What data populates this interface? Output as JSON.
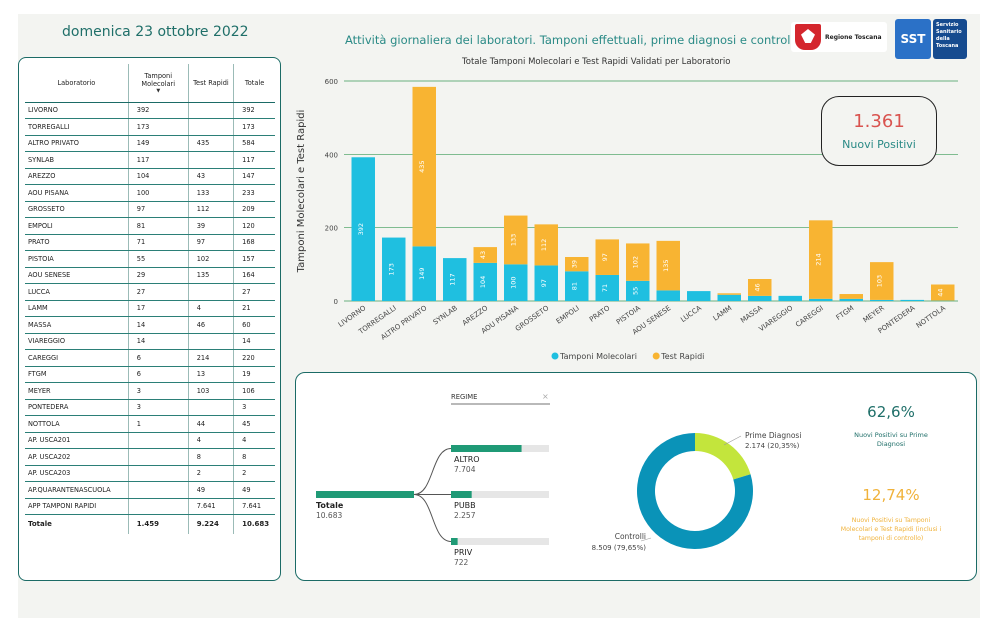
{
  "header": {
    "date": "domenica 23 ottobre 2022",
    "title": "Attività giornaliera dei laboratori. Tamponi effettuali, prime diagnosi e controlli",
    "logo_regione": "Regione Toscana",
    "logo_sst_short": "SST",
    "logo_sst_text": "Servizio Sanitario della Toscana"
  },
  "table": {
    "columns": [
      "Laboratorio",
      "Tamponi Molecolari",
      "Test Rapidi",
      "Totale"
    ],
    "rows": [
      [
        "LIVORNO",
        "392",
        "",
        "392"
      ],
      [
        "TORREGALLI",
        "173",
        "",
        "173"
      ],
      [
        "ALTRO PRIVATO",
        "149",
        "435",
        "584"
      ],
      [
        "SYNLAB",
        "117",
        "",
        "117"
      ],
      [
        "AREZZO",
        "104",
        "43",
        "147"
      ],
      [
        "AOU PISANA",
        "100",
        "133",
        "233"
      ],
      [
        "GROSSETO",
        "97",
        "112",
        "209"
      ],
      [
        "EMPOLI",
        "81",
        "39",
        "120"
      ],
      [
        "PRATO",
        "71",
        "97",
        "168"
      ],
      [
        "PISTOIA",
        "55",
        "102",
        "157"
      ],
      [
        "AOU SENESE",
        "29",
        "135",
        "164"
      ],
      [
        "LUCCA",
        "27",
        "",
        "27"
      ],
      [
        "LAMM",
        "17",
        "4",
        "21"
      ],
      [
        "MASSA",
        "14",
        "46",
        "60"
      ],
      [
        "VIAREGGIO",
        "14",
        "",
        "14"
      ],
      [
        "CAREGGI",
        "6",
        "214",
        "220"
      ],
      [
        "FTGM",
        "6",
        "13",
        "19"
      ],
      [
        "MEYER",
        "3",
        "103",
        "106"
      ],
      [
        "PONTEDERA",
        "3",
        "",
        "3"
      ],
      [
        "NOTTOLA",
        "1",
        "44",
        "45"
      ],
      [
        "AP. USCA201",
        "",
        "4",
        "4"
      ],
      [
        "AP. USCA202",
        "",
        "8",
        "8"
      ],
      [
        "AP. USCA203",
        "",
        "2",
        "2"
      ],
      [
        "AP.QUARANTENASCUOLA",
        "",
        "49",
        "49"
      ],
      [
        "APP TAMPONI RAPIDI",
        "",
        "7.641",
        "7.641"
      ]
    ],
    "total": [
      "Totale",
      "1.459",
      "9.224",
      "10.683"
    ]
  },
  "chart_data": {
    "type": "bar",
    "title": "Totale Tamponi Molecolari e Test Rapidi Validati per Laboratorio",
    "ylabel": "Tamponi Molecolari e Test Rapidi",
    "xlabel": "",
    "ylim": [
      0,
      600
    ],
    "yticks": [
      0,
      200,
      400,
      600
    ],
    "grid": true,
    "stacked": true,
    "legend_position": "bottom",
    "categories": [
      "LIVORNO",
      "TORREGALLI",
      "ALTRO PRIVATO",
      "SYNLAB",
      "AREZZO",
      "AOU PISANA",
      "GROSSETO",
      "EMPOLI",
      "PRATO",
      "PISTOIA",
      "AOU SENESE",
      "LUCCA",
      "LAMM",
      "MASSA",
      "VIAREGGIO",
      "CAREGGI",
      "FTGM",
      "MEYER",
      "PONTEDERA",
      "NOTTOLA"
    ],
    "series": [
      {
        "name": "Tamponi Molecolari",
        "color": "#1fbfe0",
        "values": [
          392,
          173,
          149,
          117,
          104,
          100,
          97,
          81,
          71,
          55,
          29,
          27,
          17,
          14,
          14,
          6,
          6,
          3,
          3,
          1
        ]
      },
      {
        "name": "Test Rapidi",
        "color": "#f8b432",
        "values": [
          0,
          0,
          435,
          0,
          43,
          133,
          112,
          39,
          97,
          102,
          135,
          0,
          4,
          46,
          0,
          214,
          13,
          103,
          0,
          44
        ]
      }
    ]
  },
  "kpi": {
    "value": "1.361",
    "label": "Nuovi Positivi"
  },
  "decomposition": {
    "filter_label": "REGIME",
    "root": {
      "label": "Totale",
      "value": "10.683",
      "amount": 10683
    },
    "children": [
      {
        "label": "ALTRO",
        "value": "7.704",
        "amount": 7704
      },
      {
        "label": "PUBB",
        "value": "2.257",
        "amount": 2257
      },
      {
        "label": "PRIV",
        "value": "722",
        "amount": 722
      }
    ],
    "bar_color": "#1f9a76",
    "track_color": "#e6e6e6"
  },
  "donut": {
    "type": "pie",
    "slices": [
      {
        "label": "Prime Diagnosi",
        "value": 2174,
        "display": "2.174 (20,35%)",
        "color": "#c3e53c"
      },
      {
        "label": "Controlli",
        "value": 8509,
        "display": "8.509 (79,65%)",
        "color": "#0a93b8"
      }
    ]
  },
  "stats": {
    "pct1": "62,6%",
    "label1": "Nuovi Positivi su Prime Diagnosi",
    "pct2": "12,74%",
    "label2": "Nuovi Positivi su Tamponi Molecolari e Test Rapidi (inclusi i tamponi di controllo)"
  }
}
